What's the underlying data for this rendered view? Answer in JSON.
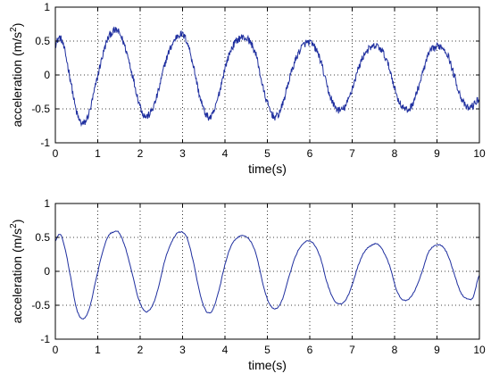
{
  "chart_data": [
    {
      "type": "line",
      "panel": "top",
      "xlabel": "time(s)",
      "ylabel_main": "acceleration (m/s",
      "ylabel_sup": "2",
      "ylabel_close": ")",
      "xlim": [
        0,
        10
      ],
      "ylim": [
        -1,
        1
      ],
      "xticks": [
        "0",
        "1",
        "2",
        "3",
        "4",
        "5",
        "6",
        "7",
        "8",
        "9",
        "10"
      ],
      "yticks": [
        "-1",
        "-0.5",
        "0",
        "0.5",
        "1"
      ],
      "grid": true,
      "line_color": "#1f2f9f",
      "noise": "high",
      "series": [
        {
          "x": [
            0,
            0.1,
            0.2,
            0.35,
            0.5,
            0.65,
            0.8,
            0.95,
            1.1,
            1.25,
            1.4,
            1.5,
            1.65,
            1.8,
            1.95,
            2.1,
            2.25,
            2.4,
            2.6,
            2.8,
            2.95,
            3.1,
            3.25,
            3.4,
            3.55,
            3.7,
            3.85,
            4.0,
            4.15,
            4.3,
            4.45,
            4.6,
            4.75,
            4.9,
            5.05,
            5.2,
            5.35,
            5.5,
            5.65,
            5.8,
            5.95,
            6.1,
            6.25,
            6.4,
            6.55,
            6.7,
            6.85,
            7.0,
            7.15,
            7.3,
            7.45,
            7.6,
            7.75,
            7.9,
            8.05,
            8.2,
            8.35,
            8.5,
            8.65,
            8.8,
            8.95,
            9.1,
            9.25,
            9.4,
            9.55,
            9.7,
            9.85,
            10.0
          ],
          "values": [
            0.45,
            0.55,
            0.4,
            -0.05,
            -0.55,
            -0.72,
            -0.55,
            -0.15,
            0.25,
            0.55,
            0.65,
            0.62,
            0.4,
            0.05,
            -0.35,
            -0.6,
            -0.55,
            -0.3,
            0.2,
            0.5,
            0.6,
            0.5,
            0.15,
            -0.3,
            -0.58,
            -0.6,
            -0.3,
            0.1,
            0.38,
            0.52,
            0.55,
            0.48,
            0.25,
            -0.2,
            -0.5,
            -0.62,
            -0.45,
            -0.1,
            0.2,
            0.4,
            0.48,
            0.42,
            0.22,
            -0.15,
            -0.42,
            -0.52,
            -0.45,
            -0.2,
            0.1,
            0.32,
            0.4,
            0.42,
            0.3,
            0.05,
            -0.3,
            -0.48,
            -0.5,
            -0.3,
            0.0,
            0.3,
            0.4,
            0.42,
            0.3,
            0.0,
            -0.3,
            -0.48,
            -0.45,
            -0.35
          ]
        }
      ]
    },
    {
      "type": "line",
      "panel": "bottom",
      "xlabel": "time(s)",
      "ylabel_main": "acceleration (m/s",
      "ylabel_sup": "2",
      "ylabel_close": ")",
      "xlim": [
        0,
        10
      ],
      "ylim": [
        -1,
        1
      ],
      "xticks": [
        "0",
        "1",
        "2",
        "3",
        "4",
        "5",
        "6",
        "7",
        "8",
        "9",
        "10"
      ],
      "yticks": [
        "-1",
        "-0.5",
        "0",
        "0.5",
        "1"
      ],
      "grid": true,
      "line_color": "#1f2f9f",
      "noise": "low",
      "series": [
        {
          "x": [
            0,
            0.1,
            0.2,
            0.35,
            0.5,
            0.65,
            0.8,
            0.95,
            1.1,
            1.25,
            1.4,
            1.5,
            1.65,
            1.8,
            1.95,
            2.1,
            2.25,
            2.4,
            2.6,
            2.8,
            2.95,
            3.1,
            3.25,
            3.4,
            3.55,
            3.7,
            3.85,
            4.0,
            4.15,
            4.3,
            4.45,
            4.6,
            4.75,
            4.9,
            5.05,
            5.2,
            5.35,
            5.5,
            5.65,
            5.8,
            5.95,
            6.1,
            6.25,
            6.4,
            6.55,
            6.7,
            6.85,
            7.0,
            7.15,
            7.3,
            7.45,
            7.6,
            7.75,
            7.9,
            8.05,
            8.2,
            8.35,
            8.5,
            8.65,
            8.8,
            8.95,
            9.1,
            9.25,
            9.4,
            9.55,
            9.7,
            9.85,
            10.0
          ],
          "values": [
            0.45,
            0.55,
            0.4,
            -0.05,
            -0.55,
            -0.7,
            -0.55,
            -0.15,
            0.25,
            0.52,
            0.58,
            0.57,
            0.35,
            0.0,
            -0.38,
            -0.58,
            -0.55,
            -0.3,
            0.2,
            0.5,
            0.58,
            0.5,
            0.15,
            -0.3,
            -0.58,
            -0.58,
            -0.3,
            0.1,
            0.38,
            0.5,
            0.52,
            0.45,
            0.22,
            -0.2,
            -0.48,
            -0.55,
            -0.42,
            -0.1,
            0.2,
            0.38,
            0.45,
            0.4,
            0.2,
            -0.15,
            -0.4,
            -0.48,
            -0.42,
            -0.2,
            0.1,
            0.3,
            0.38,
            0.4,
            0.28,
            0.05,
            -0.28,
            -0.42,
            -0.4,
            -0.25,
            0.0,
            0.28,
            0.38,
            0.38,
            0.25,
            -0.02,
            -0.3,
            -0.4,
            -0.38,
            -0.05
          ]
        }
      ]
    }
  ]
}
